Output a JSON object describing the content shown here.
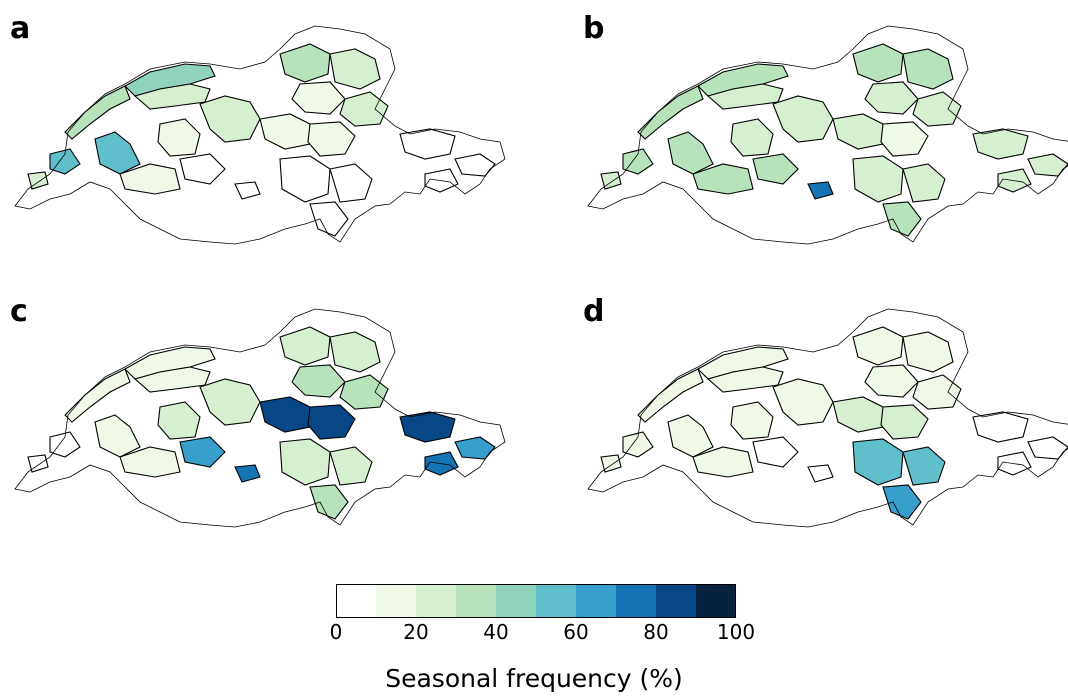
{
  "panels": [
    {
      "label": "a",
      "note": "mostly light green in north/west regions"
    },
    {
      "label": "b",
      "note": "light greens across north and south"
    },
    {
      "label": "c",
      "note": "dark blues in central and eastern regions"
    },
    {
      "label": "d",
      "note": "blues in southern Ticino region"
    }
  ],
  "colorbar": {
    "title": "Seasonal frequency (%)",
    "ticks": [
      "0",
      "20",
      "40",
      "60",
      "80",
      "100"
    ],
    "colors": [
      "#ffffff",
      "#f0f9e8",
      "#d7efd1",
      "#b7e3bc",
      "#8fd3be",
      "#61bfcc",
      "#389ecb",
      "#1673b4",
      "#084785",
      "#08213f"
    ]
  },
  "map": {
    "region_colors": {
      "a": [
        "#b7e3bc",
        "#d7efd1",
        "#f0f9e8",
        "#ffffff",
        "#61bfcc",
        "#8fd3be"
      ],
      "b": [
        "#d7efd1",
        "#b7e3bc",
        "#f0f9e8",
        "#ffffff",
        "#389ecb",
        "#1673b4"
      ],
      "c": [
        "#d7efd1",
        "#b7e3bc",
        "#1673b4",
        "#084785",
        "#389ecb",
        "#08213f",
        "#61bfcc",
        "#f0f9e8"
      ],
      "d": [
        "#f0f9e8",
        "#d7efd1",
        "#b7e3bc",
        "#61bfcc",
        "#389ecb",
        "#ffffff"
      ]
    }
  }
}
